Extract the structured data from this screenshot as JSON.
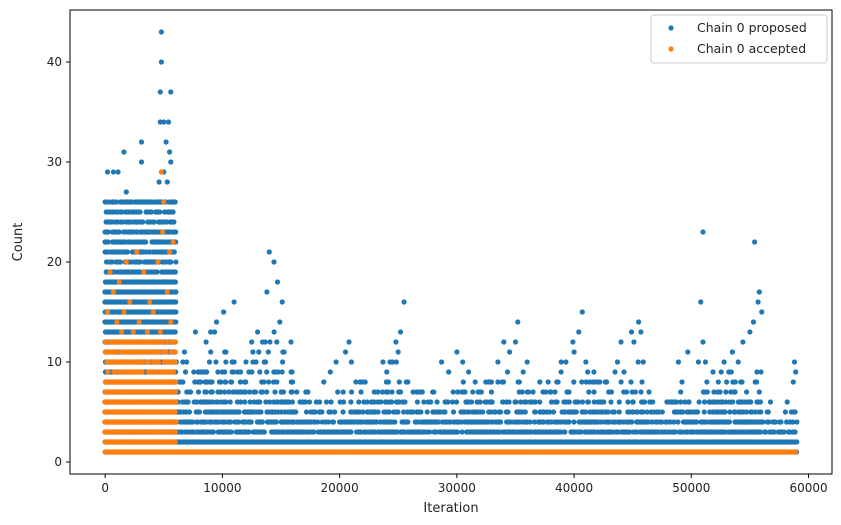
{
  "chart_data": {
    "type": "scatter",
    "xlabel": "Iteration",
    "ylabel": "Count",
    "xlim": [
      -3000,
      62000
    ],
    "ylim": [
      -1.2,
      45.2
    ],
    "xticks": [
      0,
      10000,
      20000,
      30000,
      40000,
      50000,
      60000
    ],
    "yticks": [
      0,
      10,
      20,
      30,
      40
    ],
    "xtick_labels": [
      "0",
      "10000",
      "20000",
      "30000",
      "40000",
      "50000",
      "60000"
    ],
    "ytick_labels": [
      "0",
      "10",
      "20",
      "30",
      "40"
    ],
    "grid": false,
    "legend_position": "top-right",
    "series": [
      {
        "name": "Chain 0 proposed",
        "color": "#1f77b4",
        "segments": [
          {
            "x_range": [
              0,
              6000
            ],
            "y_max": 26,
            "dense": true
          },
          {
            "x_range": [
              6000,
              16000
            ],
            "y_max": 13
          },
          {
            "x_range": [
              16000,
              21000
            ],
            "y_max": 8
          },
          {
            "x_range": [
              21000,
              26000
            ],
            "y_max": 10
          },
          {
            "x_range": [
              26000,
              31000
            ],
            "y_max": 8
          },
          {
            "x_range": [
              31000,
              36000
            ],
            "y_max": 9
          },
          {
            "x_range": [
              36000,
              41000
            ],
            "y_max": 9
          },
          {
            "x_range": [
              41000,
              46000
            ],
            "y_max": 10
          },
          {
            "x_range": [
              46000,
              51000
            ],
            "y_max": 8
          },
          {
            "x_range": [
              51000,
              56000
            ],
            "y_max": 10
          },
          {
            "x_range": [
              56000,
              59000
            ],
            "y_max": 6
          }
        ],
        "points": [
          [
            4800,
            43
          ],
          [
            4800,
            40
          ],
          [
            4700,
            37
          ],
          [
            5600,
            37
          ],
          [
            4700,
            34
          ],
          [
            5000,
            34
          ],
          [
            5400,
            34
          ],
          [
            5200,
            32
          ],
          [
            3100,
            32
          ],
          [
            5500,
            31
          ],
          [
            1600,
            31
          ],
          [
            200,
            29
          ],
          [
            700,
            29
          ],
          [
            1100,
            29
          ],
          [
            5000,
            29
          ],
          [
            1800,
            27
          ],
          [
            3100,
            30
          ],
          [
            5600,
            30
          ],
          [
            5300,
            28
          ],
          [
            4600,
            28
          ],
          [
            14000,
            21
          ],
          [
            14400,
            20
          ],
          [
            14700,
            18
          ],
          [
            13800,
            17
          ],
          [
            15100,
            16
          ],
          [
            14900,
            14
          ],
          [
            11000,
            16
          ],
          [
            10100,
            15
          ],
          [
            9500,
            14
          ],
          [
            9000,
            13
          ],
          [
            12500,
            12
          ],
          [
            13000,
            13
          ],
          [
            20800,
            12
          ],
          [
            20500,
            11
          ],
          [
            21000,
            10
          ],
          [
            19700,
            10
          ],
          [
            19200,
            9
          ],
          [
            25500,
            16
          ],
          [
            25200,
            13
          ],
          [
            24800,
            12
          ],
          [
            25000,
            11
          ],
          [
            23700,
            10
          ],
          [
            24300,
            10
          ],
          [
            30000,
            11
          ],
          [
            30500,
            10
          ],
          [
            28700,
            10
          ],
          [
            29300,
            9
          ],
          [
            31000,
            9
          ],
          [
            35200,
            14
          ],
          [
            34000,
            12
          ],
          [
            35000,
            12
          ],
          [
            33500,
            10
          ],
          [
            34500,
            11
          ],
          [
            36000,
            10
          ],
          [
            40700,
            15
          ],
          [
            40400,
            13
          ],
          [
            39900,
            12
          ],
          [
            40000,
            11
          ],
          [
            38900,
            10
          ],
          [
            39300,
            10
          ],
          [
            45500,
            14
          ],
          [
            44900,
            13
          ],
          [
            45700,
            13
          ],
          [
            44000,
            12
          ],
          [
            45100,
            12
          ],
          [
            43700,
            10
          ],
          [
            51000,
            23
          ],
          [
            50800,
            16
          ],
          [
            51000,
            12
          ],
          [
            49700,
            11
          ],
          [
            50600,
            10
          ],
          [
            48900,
            10
          ],
          [
            51200,
            10
          ],
          [
            55400,
            22
          ],
          [
            55800,
            17
          ],
          [
            55700,
            16
          ],
          [
            55300,
            14
          ],
          [
            55000,
            13
          ],
          [
            54400,
            12
          ],
          [
            56000,
            15
          ],
          [
            53500,
            11
          ],
          [
            54000,
            10
          ],
          [
            52800,
            10
          ],
          [
            58800,
            10
          ],
          [
            58900,
            9
          ],
          [
            58700,
            8
          ]
        ]
      },
      {
        "name": "Chain 0 accepted",
        "color": "#ff7f0e",
        "segments": [
          {
            "x_range": [
              0,
              6000
            ],
            "y_max": 12,
            "dense": true
          },
          {
            "x_range": [
              6000,
              59000
            ],
            "y_max": 1
          }
        ],
        "points": [
          [
            4800,
            29
          ],
          [
            5000,
            26
          ],
          [
            4900,
            23
          ],
          [
            1800,
            20
          ],
          [
            5500,
            21
          ],
          [
            2700,
            21
          ],
          [
            400,
            19
          ],
          [
            4500,
            20
          ],
          [
            5800,
            22
          ],
          [
            1200,
            18
          ],
          [
            3300,
            19
          ],
          [
            700,
            17
          ],
          [
            2100,
            16
          ],
          [
            5300,
            17
          ],
          [
            1600,
            15
          ],
          [
            3800,
            16
          ],
          [
            4100,
            15
          ],
          [
            200,
            15
          ],
          [
            2900,
            14
          ],
          [
            1000,
            14
          ],
          [
            5600,
            14
          ],
          [
            2400,
            13
          ],
          [
            4700,
            13
          ],
          [
            1400,
            13
          ],
          [
            3600,
            13
          ],
          [
            2000,
            2
          ],
          [
            3000,
            1
          ],
          [
            500,
            1
          ]
        ]
      }
    ]
  }
}
